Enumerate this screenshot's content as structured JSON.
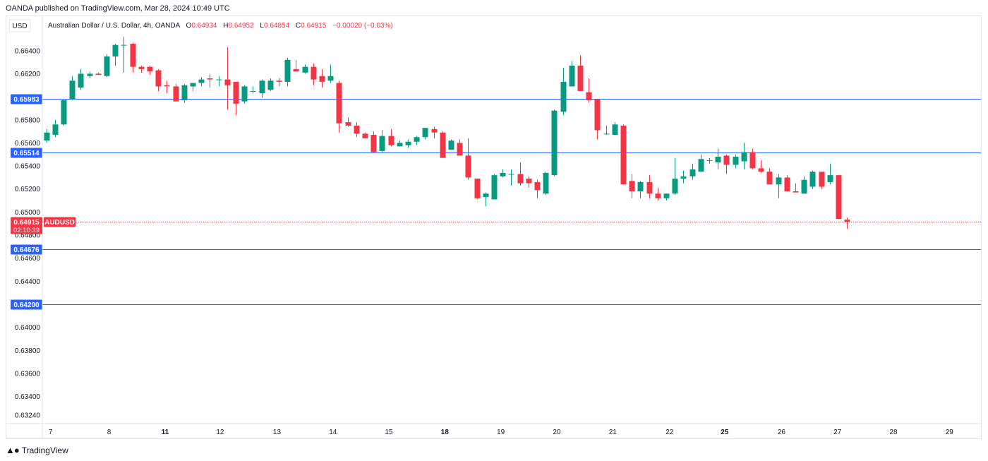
{
  "header": {
    "attribution": "OANDA published on TradingView.com, Mar 28, 2024 10:49 UTC"
  },
  "legend": {
    "symbol": "Australian Dollar / U.S. Dollar, 4h, OANDA",
    "o_label": "O",
    "o_value": "0.64934",
    "h_label": "H",
    "h_value": "0.64952",
    "l_label": "L",
    "l_value": "0.64854",
    "c_label": "C",
    "c_value": "0.64915",
    "change": "−0.00020 (−0.03%)"
  },
  "price_scale": {
    "currency": "USD",
    "ticks": [
      "0.66400",
      "0.66200",
      "0.65800",
      "0.65600",
      "0.65400",
      "0.65200",
      "0.65000",
      "0.64600",
      "0.64400",
      "0.64000",
      "0.63800",
      "0.63600",
      "0.63400",
      "0.63240"
    ],
    "partial_tick": "0.64800"
  },
  "last_price": {
    "symbol": "AUDUSD",
    "value": "0.64915",
    "countdown": "02:10:39",
    "color": "#f23645"
  },
  "levels": {
    "color": "#2962ff",
    "lines": [
      {
        "label": "0.65983",
        "price": 0.65983
      },
      {
        "label": "0.65514",
        "price": 0.65514
      },
      {
        "label": "0.64676",
        "price": 0.64676
      },
      {
        "label": "0.64200",
        "price": 0.642
      }
    ]
  },
  "colors": {
    "up": "#089981",
    "down": "#f23645",
    "grid": "#e0e3eb",
    "text": "#131722"
  },
  "footer": {
    "brand": "TradingView"
  },
  "chart_data": {
    "type": "candlestick",
    "timeframe": "4h",
    "x_labels": [
      {
        "label": "7",
        "bold": false,
        "i": 0.5
      },
      {
        "label": "8",
        "bold": false,
        "i": 7.3
      },
      {
        "label": "11",
        "bold": true,
        "i": 13.8
      },
      {
        "label": "12",
        "bold": false,
        "i": 20.2
      },
      {
        "label": "13",
        "bold": false,
        "i": 26.8
      },
      {
        "label": "14",
        "bold": false,
        "i": 33.3
      },
      {
        "label": "15",
        "bold": false,
        "i": 39.8
      },
      {
        "label": "18",
        "bold": true,
        "i": 46.3
      },
      {
        "label": "19",
        "bold": false,
        "i": 52.8
      },
      {
        "label": "20",
        "bold": false,
        "i": 59.3
      },
      {
        "label": "21",
        "bold": false,
        "i": 65.8
      },
      {
        "label": "22",
        "bold": false,
        "i": 72.4
      },
      {
        "label": "25",
        "bold": true,
        "i": 78.8
      },
      {
        "label": "26",
        "bold": false,
        "i": 85.4
      },
      {
        "label": "27",
        "bold": false,
        "i": 91.9
      },
      {
        "label": "28",
        "bold": false,
        "i": 98.4
      },
      {
        "label": "29",
        "bold": false,
        "i": 104.9
      }
    ],
    "ohlc": [
      [
        0.6562,
        0.6572,
        0.656,
        0.6569
      ],
      [
        0.6567,
        0.658,
        0.6565,
        0.6576
      ],
      [
        0.6576,
        0.6598,
        0.6575,
        0.6597
      ],
      [
        0.6598,
        0.6618,
        0.6597,
        0.6614
      ],
      [
        0.6608,
        0.6624,
        0.6606,
        0.662
      ],
      [
        0.6618,
        0.6622,
        0.6616,
        0.662
      ],
      [
        0.662,
        0.6621,
        0.6619,
        0.6619
      ],
      [
        0.6618,
        0.6637,
        0.6617,
        0.6635
      ],
      [
        0.6635,
        0.6646,
        0.6627,
        0.6645
      ],
      [
        0.6645,
        0.6652,
        0.6621,
        0.6645
      ],
      [
        0.6646,
        0.6647,
        0.6621,
        0.6626
      ],
      [
        0.6626,
        0.6627,
        0.6621,
        0.6624
      ],
      [
        0.6626,
        0.6627,
        0.6619,
        0.6622
      ],
      [
        0.6623,
        0.6624,
        0.6605,
        0.6609
      ],
      [
        0.661,
        0.6614,
        0.6603,
        0.6609
      ],
      [
        0.6609,
        0.6611,
        0.6596,
        0.6596
      ],
      [
        0.6597,
        0.6611,
        0.6595,
        0.661
      ],
      [
        0.6609,
        0.6612,
        0.6605,
        0.6612
      ],
      [
        0.6612,
        0.6617,
        0.6609,
        0.6615
      ],
      [
        0.6616,
        0.662,
        0.6608,
        0.6615
      ],
      [
        0.6615,
        0.6618,
        0.6609,
        0.6615
      ],
      [
        0.6615,
        0.6643,
        0.6589,
        0.661
      ],
      [
        0.6613,
        0.6613,
        0.6584,
        0.6594
      ],
      [
        0.6596,
        0.661,
        0.6594,
        0.6609
      ],
      [
        0.6605,
        0.6609,
        0.6603,
        0.6605
      ],
      [
        0.6603,
        0.6615,
        0.6599,
        0.6614
      ],
      [
        0.6606,
        0.6616,
        0.6605,
        0.6614
      ],
      [
        0.6614,
        0.6616,
        0.6609,
        0.6613
      ],
      [
        0.6613,
        0.6634,
        0.6609,
        0.6632
      ],
      [
        0.6624,
        0.6632,
        0.6622,
        0.6622
      ],
      [
        0.6621,
        0.6628,
        0.662,
        0.6626
      ],
      [
        0.6626,
        0.6629,
        0.661,
        0.6615
      ],
      [
        0.6618,
        0.6624,
        0.6608,
        0.6613
      ],
      [
        0.6614,
        0.6628,
        0.6612,
        0.6618
      ],
      [
        0.6612,
        0.6614,
        0.6569,
        0.6577
      ],
      [
        0.6578,
        0.6582,
        0.6574,
        0.6575
      ],
      [
        0.6575,
        0.6578,
        0.6565,
        0.6568
      ],
      [
        0.6568,
        0.6569,
        0.6564,
        0.6564
      ],
      [
        0.6567,
        0.657,
        0.6551,
        0.6552
      ],
      [
        0.6553,
        0.6571,
        0.6552,
        0.6566
      ],
      [
        0.6566,
        0.6572,
        0.6557,
        0.6558
      ],
      [
        0.6557,
        0.6562,
        0.6557,
        0.656
      ],
      [
        0.6558,
        0.6563,
        0.6556,
        0.6561
      ],
      [
        0.6561,
        0.6566,
        0.6558,
        0.6565
      ],
      [
        0.6565,
        0.6573,
        0.6563,
        0.6573
      ],
      [
        0.6572,
        0.6574,
        0.6564,
        0.6569
      ],
      [
        0.6569,
        0.657,
        0.6547,
        0.6547
      ],
      [
        0.6554,
        0.6563,
        0.6554,
        0.6562
      ],
      [
        0.656,
        0.6563,
        0.6549,
        0.6549
      ],
      [
        0.6549,
        0.6564,
        0.6528,
        0.653
      ],
      [
        0.6529,
        0.6529,
        0.6511,
        0.6512
      ],
      [
        0.6513,
        0.6517,
        0.6505,
        0.6516
      ],
      [
        0.6511,
        0.6533,
        0.6511,
        0.6532
      ],
      [
        0.6531,
        0.6537,
        0.653,
        0.6534
      ],
      [
        0.6533,
        0.6537,
        0.6523,
        0.6533
      ],
      [
        0.6533,
        0.6543,
        0.6523,
        0.6525
      ],
      [
        0.6529,
        0.6531,
        0.6521,
        0.6525
      ],
      [
        0.6526,
        0.6528,
        0.6512,
        0.6519
      ],
      [
        0.6516,
        0.6535,
        0.6515,
        0.6534
      ],
      [
        0.6532,
        0.6589,
        0.6531,
        0.6588
      ],
      [
        0.6587,
        0.6625,
        0.6584,
        0.6613
      ],
      [
        0.6609,
        0.6631,
        0.6609,
        0.6627
      ],
      [
        0.6627,
        0.6636,
        0.6605,
        0.6605
      ],
      [
        0.6604,
        0.6616,
        0.6595,
        0.6597
      ],
      [
        0.6598,
        0.6598,
        0.6563,
        0.6571
      ],
      [
        0.6568,
        0.6575,
        0.6567,
        0.6568
      ],
      [
        0.6567,
        0.6578,
        0.6567,
        0.6576
      ],
      [
        0.6575,
        0.6576,
        0.6524,
        0.6524
      ],
      [
        0.6527,
        0.6533,
        0.6512,
        0.6518
      ],
      [
        0.6518,
        0.6527,
        0.6512,
        0.6526
      ],
      [
        0.6526,
        0.6532,
        0.6512,
        0.6516
      ],
      [
        0.6516,
        0.6521,
        0.651,
        0.6512
      ],
      [
        0.6512,
        0.6516,
        0.651,
        0.6516
      ],
      [
        0.6516,
        0.6547,
        0.6515,
        0.6529
      ],
      [
        0.6529,
        0.6536,
        0.6525,
        0.6531
      ],
      [
        0.6531,
        0.6542,
        0.6528,
        0.6537
      ],
      [
        0.6535,
        0.655,
        0.6535,
        0.6546
      ],
      [
        0.6545,
        0.6547,
        0.6542,
        0.6545
      ],
      [
        0.6543,
        0.6555,
        0.6537,
        0.6548
      ],
      [
        0.6549,
        0.655,
        0.6533,
        0.6541
      ],
      [
        0.6541,
        0.655,
        0.6538,
        0.6548
      ],
      [
        0.6544,
        0.656,
        0.6537,
        0.6552
      ],
      [
        0.6552,
        0.6555,
        0.6537,
        0.6538
      ],
      [
        0.6538,
        0.6545,
        0.6534,
        0.6535
      ],
      [
        0.6535,
        0.6538,
        0.6525,
        0.6524
      ],
      [
        0.6524,
        0.6533,
        0.6512,
        0.653
      ],
      [
        0.653,
        0.6532,
        0.6518,
        0.6518
      ],
      [
        0.6518,
        0.6525,
        0.6517,
        0.6517
      ],
      [
        0.6516,
        0.6531,
        0.6516,
        0.6528
      ],
      [
        0.6522,
        0.6536,
        0.652,
        0.6535
      ],
      [
        0.6535,
        0.6535,
        0.652,
        0.6522
      ],
      [
        0.6526,
        0.6542,
        0.6524,
        0.6532
      ],
      [
        0.6532,
        0.6532,
        0.6494,
        0.6494
      ],
      [
        0.64934,
        0.64952,
        0.64854,
        0.64915
      ]
    ],
    "ylim": [
      0.63165,
      0.66705
    ]
  }
}
